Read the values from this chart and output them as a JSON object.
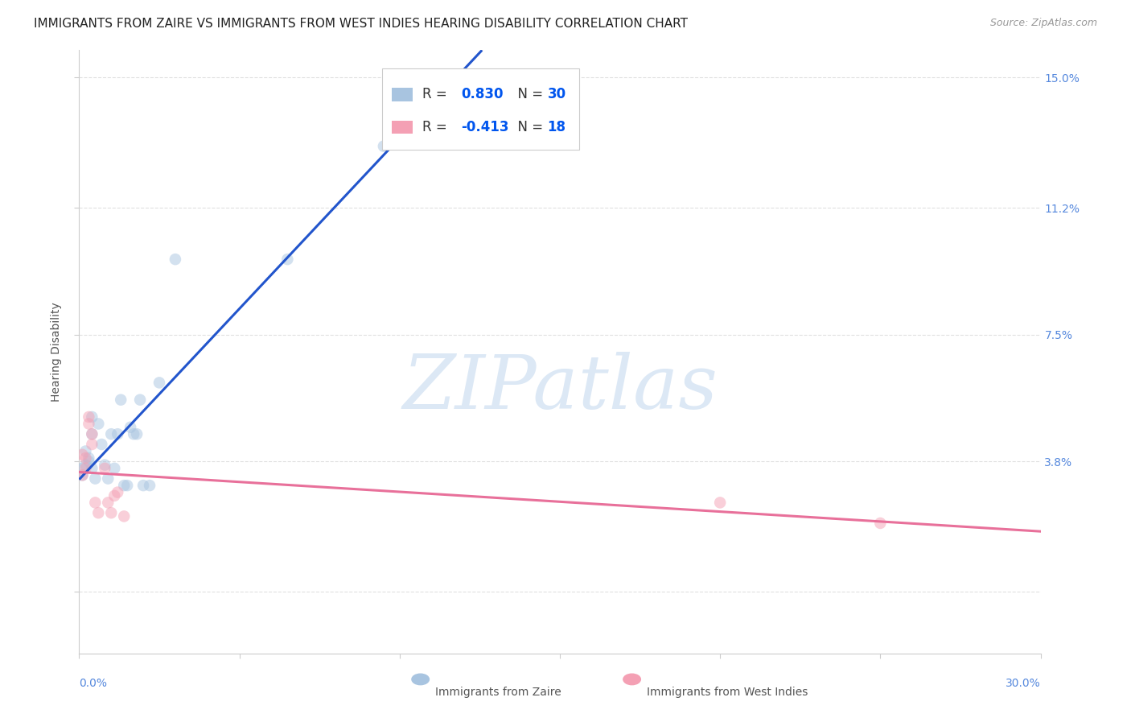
{
  "title": "IMMIGRANTS FROM ZAIRE VS IMMIGRANTS FROM WEST INDIES HEARING DISABILITY CORRELATION CHART",
  "source": "Source: ZipAtlas.com",
  "ylabel": "Hearing Disability",
  "y_ticks": [
    0.0,
    0.038,
    0.075,
    0.112,
    0.15
  ],
  "y_tick_labels": [
    "",
    "3.8%",
    "7.5%",
    "11.2%",
    "15.0%"
  ],
  "x_lim": [
    0.0,
    0.3
  ],
  "y_lim": [
    -0.018,
    0.158
  ],
  "zaire_R": 0.83,
  "zaire_N": 30,
  "wi_R": -0.413,
  "wi_N": 18,
  "zaire_color": "#a8c4e0",
  "wi_color": "#f4a0b4",
  "zaire_line_color": "#2255cc",
  "wi_line_color": "#e8709a",
  "watermark_color": "#dce8f5",
  "background_color": "#ffffff",
  "grid_color": "#cccccc",
  "zaire_points": [
    [
      0.001,
      0.036
    ],
    [
      0.001,
      0.034
    ],
    [
      0.002,
      0.041
    ],
    [
      0.002,
      0.037
    ],
    [
      0.003,
      0.039
    ],
    [
      0.003,
      0.038
    ],
    [
      0.004,
      0.051
    ],
    [
      0.004,
      0.046
    ],
    [
      0.004,
      0.036
    ],
    [
      0.005,
      0.033
    ],
    [
      0.006,
      0.049
    ],
    [
      0.007,
      0.043
    ],
    [
      0.008,
      0.037
    ],
    [
      0.009,
      0.033
    ],
    [
      0.01,
      0.046
    ],
    [
      0.011,
      0.036
    ],
    [
      0.012,
      0.046
    ],
    [
      0.013,
      0.056
    ],
    [
      0.014,
      0.031
    ],
    [
      0.015,
      0.031
    ],
    [
      0.016,
      0.048
    ],
    [
      0.017,
      0.046
    ],
    [
      0.018,
      0.046
    ],
    [
      0.019,
      0.056
    ],
    [
      0.02,
      0.031
    ],
    [
      0.022,
      0.031
    ],
    [
      0.025,
      0.061
    ],
    [
      0.03,
      0.097
    ],
    [
      0.065,
      0.097
    ],
    [
      0.095,
      0.13
    ]
  ],
  "wi_points": [
    [
      0.001,
      0.04
    ],
    [
      0.001,
      0.034
    ],
    [
      0.002,
      0.039
    ],
    [
      0.002,
      0.036
    ],
    [
      0.003,
      0.051
    ],
    [
      0.003,
      0.049
    ],
    [
      0.004,
      0.043
    ],
    [
      0.004,
      0.046
    ],
    [
      0.005,
      0.026
    ],
    [
      0.006,
      0.023
    ],
    [
      0.008,
      0.036
    ],
    [
      0.009,
      0.026
    ],
    [
      0.01,
      0.023
    ],
    [
      0.011,
      0.028
    ],
    [
      0.012,
      0.029
    ],
    [
      0.014,
      0.022
    ],
    [
      0.2,
      0.026
    ],
    [
      0.25,
      0.02
    ]
  ],
  "title_fontsize": 11,
  "source_fontsize": 9,
  "axis_label_fontsize": 10,
  "tick_fontsize": 10,
  "legend_fontsize": 12,
  "watermark_fontsize": 68,
  "scatter_size": 110,
  "scatter_alpha": 0.5,
  "line_width": 2.2
}
